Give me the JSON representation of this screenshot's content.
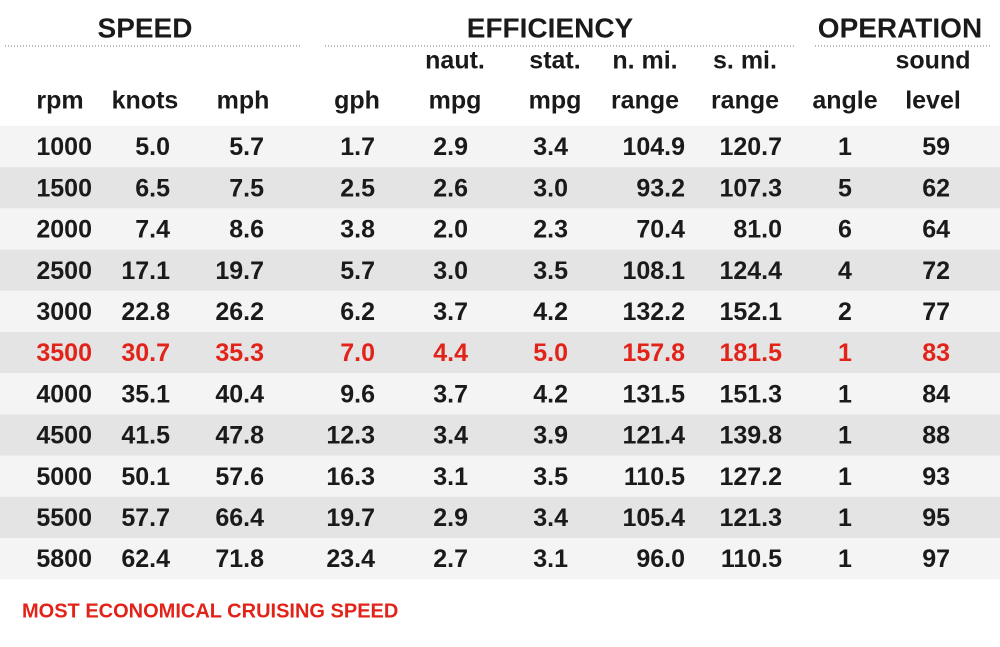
{
  "table": {
    "groups": [
      "SPEED",
      "EFFICIENCY",
      "OPERATION"
    ],
    "headers": [
      [
        "rpm"
      ],
      [
        "knots"
      ],
      [
        "mph"
      ],
      [
        "gph"
      ],
      [
        "naut.",
        "mpg"
      ],
      [
        "stat.",
        "mpg"
      ],
      [
        "n. mi.",
        "range"
      ],
      [
        "s. mi.",
        "range"
      ],
      [
        "angle"
      ],
      [
        "sound",
        "level"
      ]
    ],
    "rows": [
      [
        "1000",
        "5.0",
        "5.7",
        "1.7",
        "2.9",
        "3.4",
        "104.9",
        "120.7",
        "1",
        "59"
      ],
      [
        "1500",
        "6.5",
        "7.5",
        "2.5",
        "2.6",
        "3.0",
        "93.2",
        "107.3",
        "5",
        "62"
      ],
      [
        "2000",
        "7.4",
        "8.6",
        "3.8",
        "2.0",
        "2.3",
        "70.4",
        "81.0",
        "6",
        "64"
      ],
      [
        "2500",
        "17.1",
        "19.7",
        "5.7",
        "3.0",
        "3.5",
        "108.1",
        "124.4",
        "4",
        "72"
      ],
      [
        "3000",
        "22.8",
        "26.2",
        "6.2",
        "3.7",
        "4.2",
        "132.2",
        "152.1",
        "2",
        "77"
      ],
      [
        "3500",
        "30.7",
        "35.3",
        "7.0",
        "4.4",
        "5.0",
        "157.8",
        "181.5",
        "1",
        "83"
      ],
      [
        "4000",
        "35.1",
        "40.4",
        "9.6",
        "3.7",
        "4.2",
        "131.5",
        "151.3",
        "1",
        "84"
      ],
      [
        "4500",
        "41.5",
        "47.8",
        "12.3",
        "3.4",
        "3.9",
        "121.4",
        "139.8",
        "1",
        "88"
      ],
      [
        "5000",
        "50.1",
        "57.6",
        "16.3",
        "3.1",
        "3.5",
        "110.5",
        "127.2",
        "1",
        "93"
      ],
      [
        "5500",
        "57.7",
        "66.4",
        "19.7",
        "2.9",
        "3.4",
        "105.4",
        "121.3",
        "1",
        "95"
      ],
      [
        "5800",
        "62.4",
        "71.8",
        "23.4",
        "2.7",
        "3.1",
        "96.0",
        "110.5",
        "1",
        "97"
      ]
    ],
    "highlight_row": 5,
    "highlight_color": "#e2231a",
    "footnote": "MOST ECONOMICAL CRUISING SPEED"
  }
}
